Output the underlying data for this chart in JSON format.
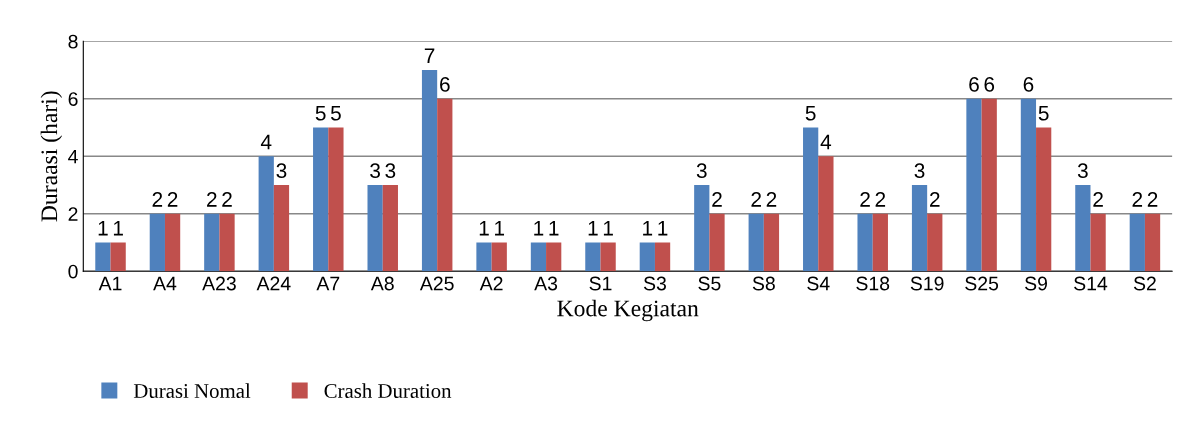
{
  "chart_data": {
    "type": "bar",
    "xlabel": "Kode Kegiatan",
    "ylabel": "Duraasi (hari)",
    "categories": [
      "A1",
      "A4",
      "A23",
      "A24",
      "A7",
      "A8",
      "A25",
      "A2",
      "A3",
      "S1",
      "S3",
      "S5",
      "S8",
      "S4",
      "S18",
      "S19",
      "S25",
      "S9",
      "S14",
      "S2"
    ],
    "series": [
      {
        "name": "Durasi Nomal",
        "color": "#4f81bd",
        "values": [
          1,
          2,
          2,
          4,
          5,
          3,
          7,
          1,
          1,
          1,
          1,
          3,
          2,
          5,
          2,
          3,
          6,
          6,
          3,
          2
        ]
      },
      {
        "name": "Crash Duration",
        "color": "#c0504d",
        "values": [
          1,
          2,
          2,
          3,
          5,
          3,
          6,
          1,
          1,
          1,
          1,
          2,
          2,
          4,
          2,
          2,
          6,
          5,
          2,
          2
        ]
      }
    ],
    "ylim": [
      0,
      8
    ],
    "yticks": [
      0,
      2,
      4,
      6,
      8
    ],
    "grid": "y",
    "legend": "bottom left",
    "data_labels": true
  }
}
